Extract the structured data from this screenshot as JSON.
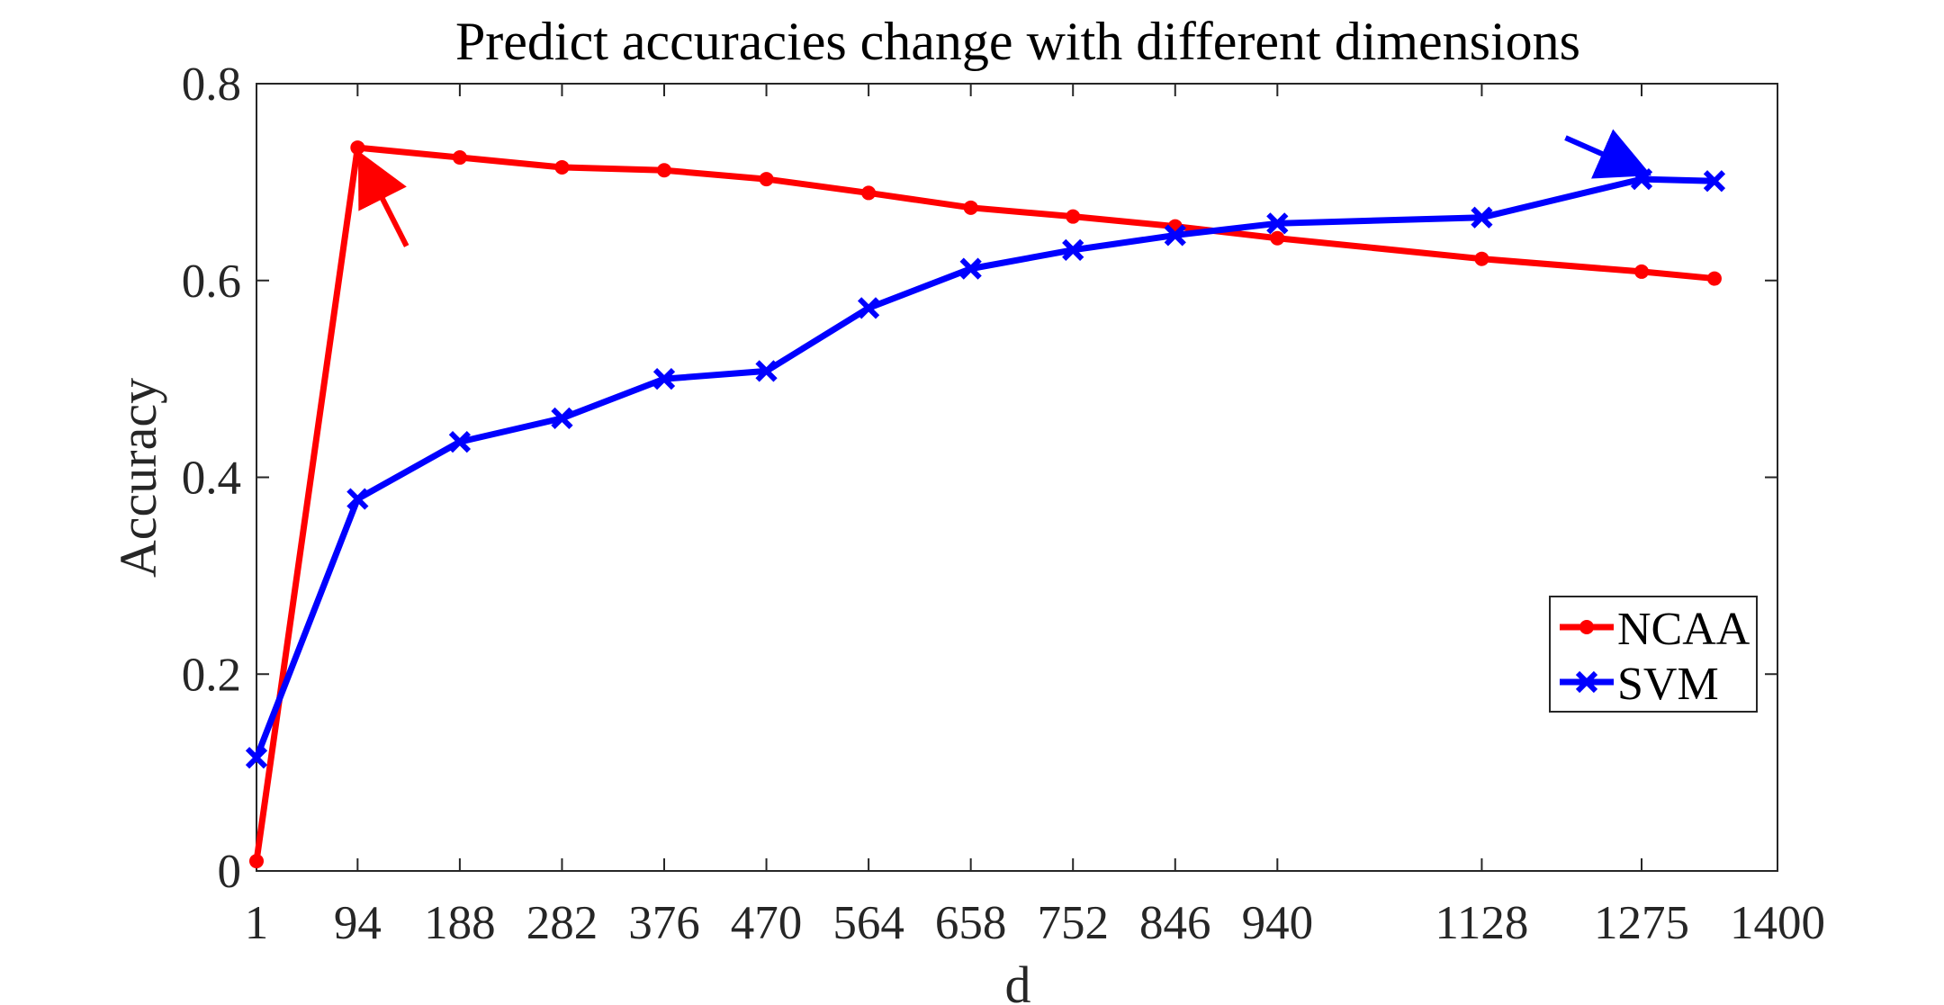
{
  "chart_data": {
    "type": "line",
    "title": "Predict accuracies change with different dimensions",
    "xlabel": "d",
    "ylabel": "Accuracy",
    "xlim": [
      1,
      1400
    ],
    "ylim": [
      0,
      0.8
    ],
    "xticks": [
      1,
      94,
      188,
      282,
      376,
      470,
      564,
      658,
      752,
      846,
      940,
      1128,
      1275,
      1400
    ],
    "xtick_labels": [
      "1",
      "94",
      "188",
      "282",
      "376",
      "470",
      "564",
      "658",
      "752",
      "846",
      "940",
      "1128",
      "1275",
      "1400"
    ],
    "yticks": [
      0,
      0.2,
      0.4,
      0.6,
      0.8
    ],
    "ytick_labels": [
      "0",
      "0.2",
      "0.4",
      "0.6",
      "0.8"
    ],
    "grid": false,
    "legend_position": "lower-right",
    "series": [
      {
        "name": "NCAA",
        "color": "#ff0000",
        "marker": "dot",
        "x": [
          1,
          94,
          188,
          282,
          376,
          470,
          564,
          658,
          752,
          846,
          940,
          1128,
          1275,
          1342
        ],
        "values": [
          0.01,
          0.735,
          0.725,
          0.715,
          0.712,
          0.703,
          0.689,
          0.674,
          0.665,
          0.655,
          0.643,
          0.622,
          0.609,
          0.602
        ]
      },
      {
        "name": "SVM",
        "color": "#0000ff",
        "marker": "x",
        "x": [
          1,
          94,
          188,
          282,
          376,
          470,
          564,
          658,
          752,
          846,
          940,
          1128,
          1275,
          1342
        ],
        "values": [
          0.115,
          0.378,
          0.436,
          0.46,
          0.5,
          0.508,
          0.572,
          0.612,
          0.631,
          0.646,
          0.658,
          0.664,
          0.703,
          0.701
        ]
      }
    ],
    "annotations": [
      {
        "type": "arrow",
        "color": "#ff0000",
        "from": [
          139,
          0.635
        ],
        "to": [
          99,
          0.722
        ]
      },
      {
        "type": "arrow",
        "color": "#0000ff",
        "from": [
          1205,
          0.745
        ],
        "to": [
          1275,
          0.711
        ]
      }
    ]
  }
}
